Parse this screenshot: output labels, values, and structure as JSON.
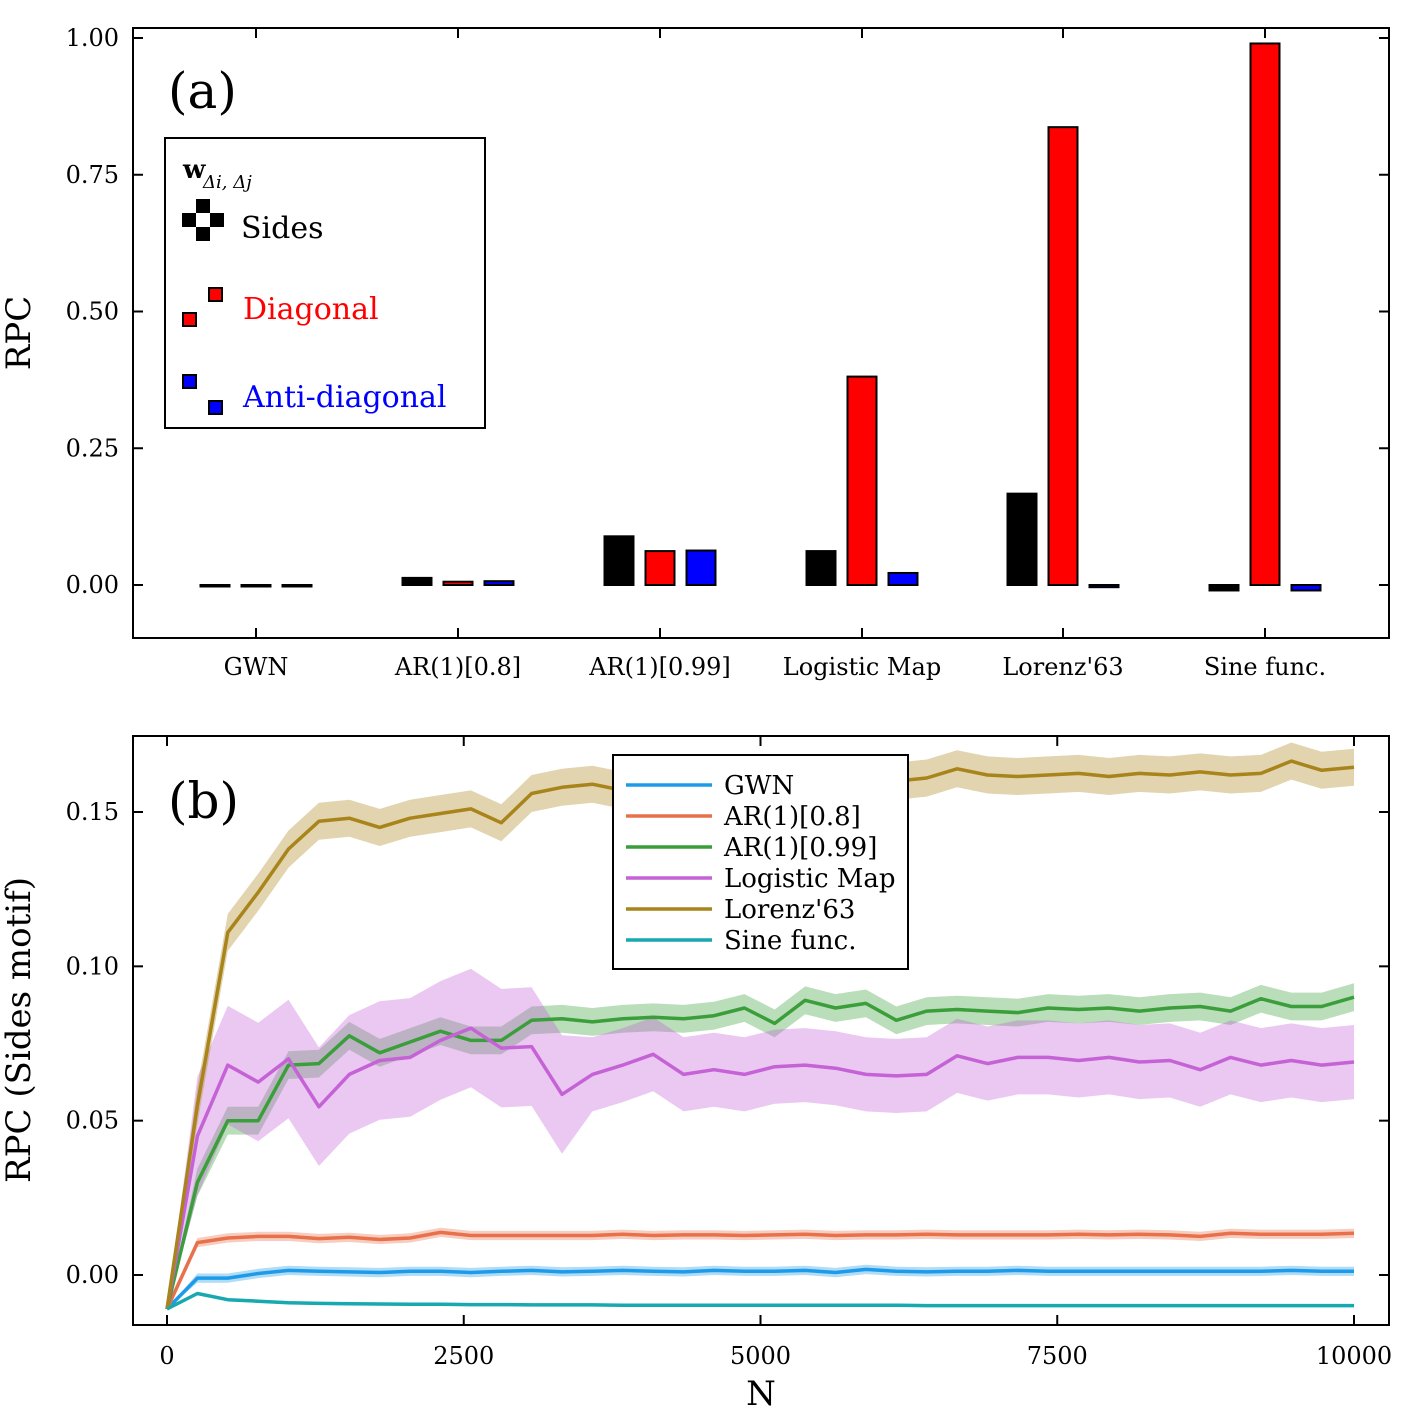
{
  "chart_data": [
    {
      "type": "bar",
      "panel_label": "(a)",
      "ylabel": "RPC",
      "ylim": [
        -0.1,
        1.0
      ],
      "yticks": [
        0.0,
        0.25,
        0.5,
        0.75,
        1.0
      ],
      "ytick_labels": [
        "0.00",
        "0.25",
        "0.50",
        "0.75",
        "1.00"
      ],
      "categories": [
        "GWN",
        "AR(1)[0.8]",
        "AR(1)[0.99]",
        "Logistic Map",
        "Lorenz'63",
        "Sine func."
      ],
      "legend": {
        "title": "w",
        "title_subscript": "Δi, Δj",
        "position": "upper-left"
      },
      "series": [
        {
          "name": "Sides",
          "color": "#000000",
          "values": [
            0.0,
            0.013,
            0.089,
            0.062,
            0.167,
            -0.01
          ]
        },
        {
          "name": "Diagonal",
          "color": "#ff0000",
          "values": [
            0.0,
            0.006,
            0.062,
            0.381,
            0.837,
            0.99
          ]
        },
        {
          "name": "Anti-diagonal",
          "color": "#0000ff",
          "values": [
            0.0,
            0.007,
            0.063,
            0.022,
            -0.004,
            -0.01
          ]
        }
      ]
    },
    {
      "type": "line",
      "panel_label": "(b)",
      "xlabel": "N",
      "ylabel": "RPC (Sides motif)",
      "xlim": [
        -600,
        10600
      ],
      "ylim": [
        -0.015,
        0.175
      ],
      "xticks": [
        0,
        2500,
        5000,
        7500,
        10000
      ],
      "xtick_labels": [
        "0",
        "2500",
        "5000",
        "7500",
        "10000"
      ],
      "yticks": [
        0.0,
        0.05,
        0.1,
        0.15
      ],
      "ytick_labels": [
        "0.00",
        "0.05",
        "0.10",
        "0.15"
      ],
      "legend_position": "top-center",
      "x": [
        0,
        256,
        512,
        768,
        1024,
        1280,
        1536,
        1792,
        2048,
        2304,
        2560,
        2816,
        3072,
        3328,
        3584,
        3840,
        4096,
        4352,
        4608,
        4864,
        5120,
        5376,
        5632,
        5888,
        6144,
        6400,
        6656,
        6912,
        7168,
        7424,
        7680,
        7936,
        8192,
        8448,
        8704,
        8960,
        9216,
        9472,
        9728,
        10000
      ],
      "series": [
        {
          "name": "GWN",
          "color": "#1e9be8",
          "band": 0.0015,
          "values": [
            -0.011,
            -0.001,
            -0.001,
            0.0005,
            0.0015,
            0.0012,
            0.001,
            0.0008,
            0.0012,
            0.0012,
            0.0008,
            0.0012,
            0.0015,
            0.001,
            0.0012,
            0.0015,
            0.0012,
            0.001,
            0.0015,
            0.0012,
            0.0012,
            0.0015,
            0.0008,
            0.0018,
            0.0012,
            0.001,
            0.0012,
            0.0012,
            0.0015,
            0.0012,
            0.0012,
            0.0012,
            0.0012,
            0.0012,
            0.0012,
            0.0012,
            0.0012,
            0.0015,
            0.0012,
            0.0012
          ]
        },
        {
          "name": "AR(1)[0.8]",
          "color": "#e8704a",
          "band": 0.0015,
          "values": [
            -0.011,
            0.0105,
            0.012,
            0.0125,
            0.0125,
            0.0118,
            0.0122,
            0.0115,
            0.012,
            0.0138,
            0.0128,
            0.0128,
            0.0128,
            0.0128,
            0.0128,
            0.0132,
            0.0128,
            0.013,
            0.013,
            0.0128,
            0.013,
            0.0132,
            0.0128,
            0.013,
            0.013,
            0.0132,
            0.013,
            0.013,
            0.013,
            0.013,
            0.0132,
            0.013,
            0.0132,
            0.013,
            0.0125,
            0.0135,
            0.0132,
            0.0132,
            0.0132,
            0.0135
          ]
        },
        {
          "name": "AR(1)[0.99]",
          "color": "#3a9e3a",
          "band": 0.0045,
          "values": [
            -0.011,
            0.03,
            0.05,
            0.05,
            0.068,
            0.0685,
            0.0775,
            0.072,
            0.0755,
            0.079,
            0.076,
            0.076,
            0.0825,
            0.083,
            0.082,
            0.083,
            0.0835,
            0.083,
            0.084,
            0.0865,
            0.0815,
            0.089,
            0.0865,
            0.088,
            0.0825,
            0.0855,
            0.086,
            0.0855,
            0.085,
            0.0865,
            0.086,
            0.0865,
            0.0855,
            0.0865,
            0.087,
            0.0855,
            0.0895,
            0.087,
            0.087,
            0.09
          ]
        },
        {
          "name": "Logistic Map",
          "color": "#c462d6",
          "band": 0.012,
          "values": [
            -0.011,
            0.045,
            0.068,
            0.0625,
            0.07,
            0.0545,
            0.065,
            0.0695,
            0.0705,
            0.076,
            0.08,
            0.0735,
            0.074,
            0.0585,
            0.065,
            0.068,
            0.0715,
            0.065,
            0.0665,
            0.065,
            0.0675,
            0.068,
            0.067,
            0.065,
            0.0645,
            0.065,
            0.071,
            0.0685,
            0.0705,
            0.0705,
            0.0695,
            0.0705,
            0.069,
            0.0695,
            0.0665,
            0.0705,
            0.068,
            0.0695,
            0.068,
            0.069
          ]
        },
        {
          "name": "Lorenz'63",
          "color": "#a8841a",
          "band": 0.006,
          "values": [
            -0.011,
            0.055,
            0.111,
            0.124,
            0.138,
            0.147,
            0.148,
            0.145,
            0.148,
            0.1495,
            0.151,
            0.1465,
            0.156,
            0.158,
            0.159,
            0.157,
            0.156,
            0.158,
            0.159,
            0.1585,
            0.159,
            0.1595,
            0.16,
            0.1605,
            0.16,
            0.161,
            0.164,
            0.162,
            0.1615,
            0.162,
            0.1625,
            0.1615,
            0.1625,
            0.162,
            0.163,
            0.162,
            0.1625,
            0.1665,
            0.1635,
            0.1645
          ]
        },
        {
          "name": "Sine func.",
          "color": "#18a8b0",
          "band": 0.0005,
          "values": [
            -0.011,
            -0.006,
            -0.008,
            -0.0085,
            -0.009,
            -0.0092,
            -0.0093,
            -0.0094,
            -0.0095,
            -0.0095,
            -0.0096,
            -0.0096,
            -0.0097,
            -0.0097,
            -0.0097,
            -0.0098,
            -0.0098,
            -0.0098,
            -0.0098,
            -0.0098,
            -0.0098,
            -0.0098,
            -0.0098,
            -0.0098,
            -0.0098,
            -0.0099,
            -0.0099,
            -0.0099,
            -0.0099,
            -0.0099,
            -0.0099,
            -0.0099,
            -0.0099,
            -0.0099,
            -0.0099,
            -0.0099,
            -0.0099,
            -0.0099,
            -0.0099,
            -0.0099
          ]
        }
      ]
    }
  ]
}
